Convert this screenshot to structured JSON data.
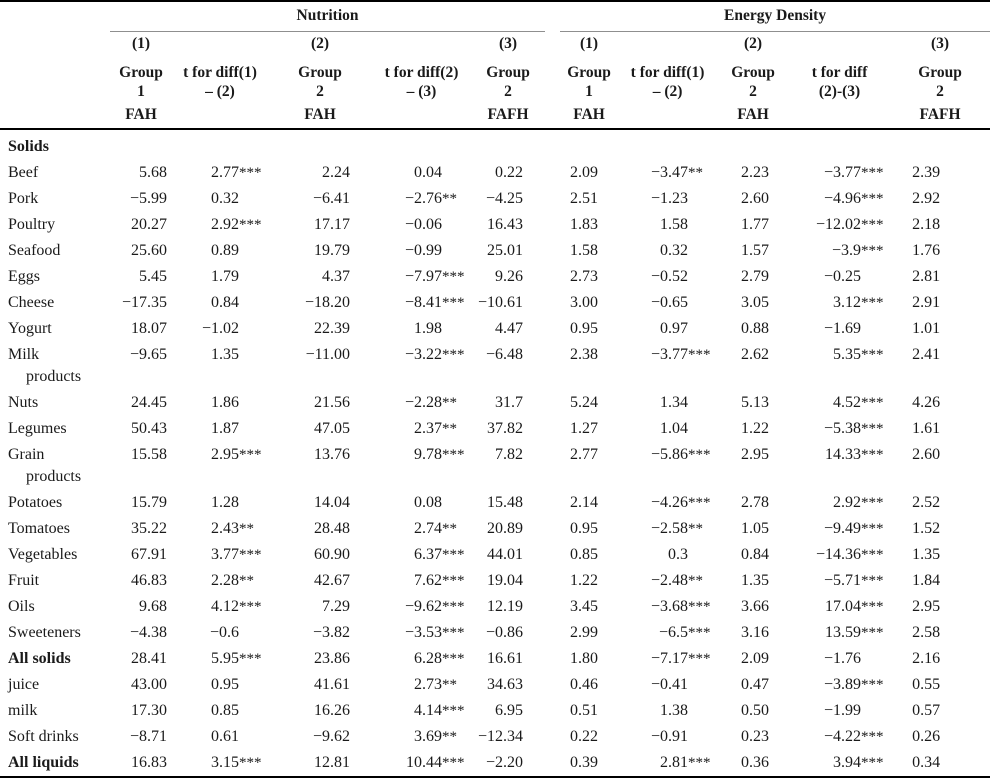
{
  "header": {
    "nutrition": {
      "title": "Nutrition",
      "cols": [
        {
          "num": "(1)",
          "name": "Group",
          "name2": "1",
          "sub": "FAH"
        },
        {
          "num": "",
          "name": "t for diff(1)",
          "name2": "– (2)",
          "sub": ""
        },
        {
          "num": "(2)",
          "name": "Group",
          "name2": "2",
          "sub": "FAH"
        },
        {
          "num": "",
          "name": "t for diff(2)",
          "name2": "– (3)",
          "sub": ""
        },
        {
          "num": "(3)",
          "name": "Group",
          "name2": "2",
          "sub": "FAFH"
        }
      ]
    },
    "energy": {
      "title": "Energy Density",
      "cols": [
        {
          "num": "(1)",
          "name": "Group",
          "name2": "1",
          "sub": "FAH"
        },
        {
          "num": "",
          "name": "t for diff(1)",
          "name2": "– (2)",
          "sub": ""
        },
        {
          "num": "(2)",
          "name": "Group",
          "name2": "2",
          "sub": "FAH"
        },
        {
          "num": "",
          "name": "t for diff",
          "name2": "(2)-(3)",
          "sub": ""
        },
        {
          "num": "(3)",
          "name": "Group",
          "name2": "2",
          "sub": "FAFH"
        }
      ]
    }
  },
  "rows": [
    {
      "label": "Solids",
      "section": true
    },
    {
      "label": "Beef",
      "values": [
        "5.68",
        "2.77***",
        "2.24",
        "0.04",
        "0.22",
        "2.09",
        "−3.47**",
        "2.23",
        "−3.77***",
        "2.39"
      ]
    },
    {
      "label": "Pork",
      "values": [
        "−5.99",
        "0.32",
        "−6.41",
        "−2.76**",
        "−4.25",
        "2.51",
        "−1.23",
        "2.60",
        "−4.96***",
        "2.92"
      ]
    },
    {
      "label": "Poultry",
      "values": [
        "20.27",
        "2.92***",
        "17.17",
        "−0.06",
        "16.43",
        "1.83",
        "1.58",
        "1.77",
        "−12.02***",
        "2.18"
      ]
    },
    {
      "label": "Seafood",
      "values": [
        "25.60",
        "0.89",
        "19.79",
        "−0.99",
        "25.01",
        "1.58",
        "0.32",
        "1.57",
        "−3.9***",
        "1.76"
      ]
    },
    {
      "label": "Eggs",
      "values": [
        "5.45",
        "1.79",
        "4.37",
        "−7.97***",
        "9.26",
        "2.73",
        "−0.52",
        "2.79",
        "−0.25",
        "2.81"
      ]
    },
    {
      "label": "Cheese",
      "values": [
        "−17.35",
        "0.84",
        "−18.20",
        "−8.41***",
        "−10.61",
        "3.00",
        "−0.65",
        "3.05",
        "3.12***",
        "2.91"
      ]
    },
    {
      "label": "Yogurt",
      "values": [
        "18.07",
        "−1.02",
        "22.39",
        "1.98",
        "4.47",
        "0.95",
        "0.97",
        "0.88",
        "−1.69",
        "1.01"
      ]
    },
    {
      "label": "Milk",
      "label2": "products",
      "values": [
        "−9.65",
        "1.35",
        "−11.00",
        "−3.22***",
        "−6.48",
        "2.38",
        "−3.77***",
        "2.62",
        "5.35***",
        "2.41"
      ]
    },
    {
      "label": "Nuts",
      "values": [
        "24.45",
        "1.86",
        "21.56",
        "−2.28**",
        "31.7",
        "5.24",
        "1.34",
        "5.13",
        "4.52***",
        "4.26"
      ]
    },
    {
      "label": "Legumes",
      "values": [
        "50.43",
        "1.87",
        "47.05",
        "2.37**",
        "37.82",
        "1.27",
        "1.04",
        "1.22",
        "−5.38***",
        "1.61"
      ]
    },
    {
      "label": "Grain",
      "label2": "products",
      "values": [
        "15.58",
        "2.95***",
        "13.76",
        "9.78***",
        "7.82",
        "2.77",
        "−5.86***",
        "2.95",
        "14.33***",
        "2.60"
      ]
    },
    {
      "label": "Potatoes",
      "values": [
        "15.79",
        "1.28",
        "14.04",
        "0.08",
        "15.48",
        "2.14",
        "−4.26***",
        "2.78",
        "2.92***",
        "2.52"
      ]
    },
    {
      "label": "Tomatoes",
      "values": [
        "35.22",
        "2.43**",
        "28.48",
        "2.74**",
        "20.89",
        "0.95",
        "−2.58**",
        "1.05",
        "−9.49***",
        "1.52"
      ]
    },
    {
      "label": "Vegetables",
      "values": [
        "67.91",
        "3.77***",
        "60.90",
        "6.37***",
        "44.01",
        "0.85",
        "0.3",
        "0.84",
        "−14.36***",
        "1.35"
      ]
    },
    {
      "label": "Fruit",
      "values": [
        "46.83",
        "2.28**",
        "42.67",
        "7.62***",
        "19.04",
        "1.22",
        "−2.48**",
        "1.35",
        "−5.71***",
        "1.84"
      ]
    },
    {
      "label": "Oils",
      "values": [
        "9.68",
        "4.12***",
        "7.29",
        "−9.62***",
        "12.19",
        "3.45",
        "−3.68***",
        "3.66",
        "17.04***",
        "2.95"
      ]
    },
    {
      "label": "Sweeteners",
      "values": [
        "−4.38",
        "−0.6",
        "−3.82",
        "−3.53***",
        "−0.86",
        "2.99",
        "−6.5***",
        "3.16",
        "13.59***",
        "2.58"
      ]
    },
    {
      "label": "All solids",
      "bold": true,
      "values": [
        "28.41",
        "5.95***",
        "23.86",
        "6.28***",
        "16.61",
        "1.80",
        "−7.17***",
        "2.09",
        "−1.76",
        "2.16"
      ]
    },
    {
      "label": "juice",
      "values": [
        "43.00",
        "0.95",
        "41.61",
        "2.73**",
        "34.63",
        "0.46",
        "−0.41",
        "0.47",
        "−3.89***",
        "0.55"
      ]
    },
    {
      "label": "milk",
      "values": [
        "17.30",
        "0.85",
        "16.26",
        "4.14***",
        "6.95",
        "0.51",
        "1.38",
        "0.50",
        "−1.99",
        "0.57"
      ]
    },
    {
      "label": "Soft drinks",
      "values": [
        "−8.71",
        "0.61",
        "−9.62",
        "3.69**",
        "−12.34",
        "0.22",
        "−0.91",
        "0.23",
        "−4.22***",
        "0.26"
      ]
    },
    {
      "label": "All liquids",
      "bold": true,
      "values": [
        "16.83",
        "3.15***",
        "12.81",
        "10.44***",
        "−2.20",
        "0.39",
        "2.81***",
        "0.36",
        "3.94***",
        "0.34"
      ]
    }
  ]
}
